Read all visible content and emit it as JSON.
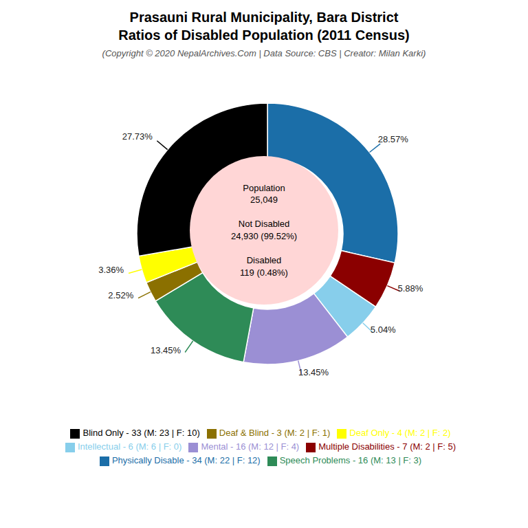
{
  "chart_data": {
    "type": "pie",
    "title": "Prasauni Rural Municipality, Bara District\nRatios of Disabled Population (2011 Census)",
    "subtitle": "(Copyright © 2020 NepalArchives.Com | Data Source: CBS | Creator: Milan Karki)",
    "categories": [
      "Physically Disable - 34 (M: 22 | F: 12)",
      "Multiple Disabilities - 7 (M: 2 | F: 5)",
      "Intellectual - 6 (M: 6 | F: 0)",
      "Mental - 16 (M: 12 | F: 4)",
      "Speech Problems - 16 (M: 13 | F: 3)",
      "Deaf & Blind - 3 (M: 2 | F: 1)",
      "Deaf Only - 4 (M: 2 | F: 2)",
      "Blind Only - 33 (M: 23 | F: 10)"
    ],
    "values": [
      28.57,
      5.88,
      5.04,
      13.45,
      13.45,
      2.52,
      3.36,
      27.73
    ],
    "value_labels": [
      "28.57%",
      "5.88%",
      "5.04%",
      "13.45%",
      "13.45%",
      "2.52%",
      "3.36%",
      "27.73%"
    ],
    "colors": [
      "#1B6EA8",
      "#8B0000",
      "#87CEEB",
      "#9B8FD4",
      "#2E8B57",
      "#8B7000",
      "#FFFF00",
      "#000000"
    ],
    "data_labels": true,
    "legend": "bottom",
    "annotations": [
      "Population\n25,049\n\nNot Disabled\n24,930 (99.52%)\n\nDisabled\n119 (0.48%)"
    ]
  }
}
